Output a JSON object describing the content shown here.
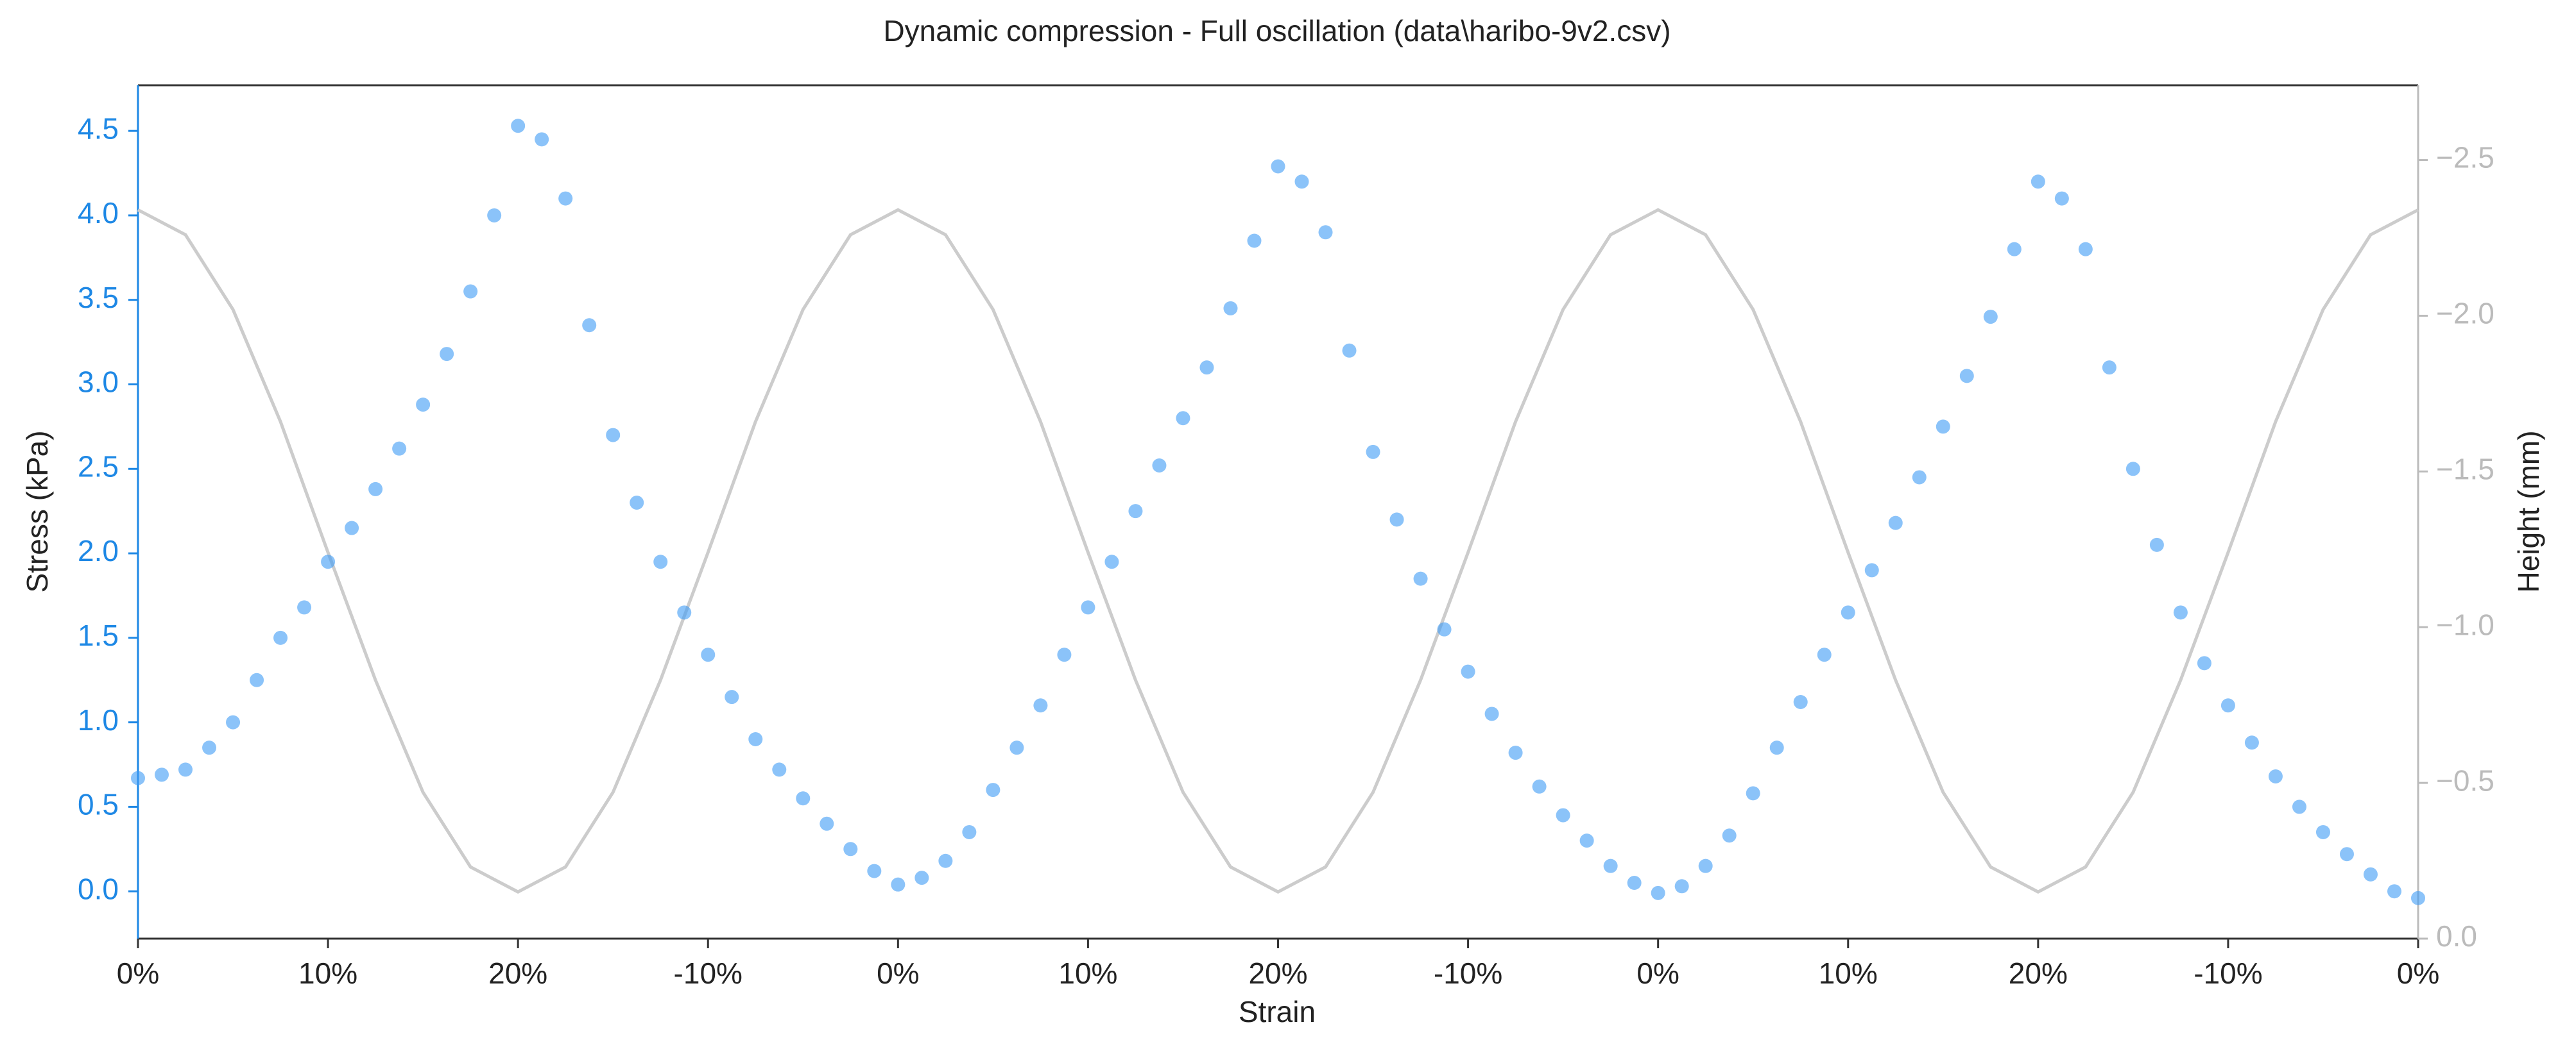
{
  "chart_data": {
    "type": "scatter",
    "title": "Dynamic compression - Full oscillation (data\\haribo-9v2.csv)",
    "xlabel": "Strain",
    "ylabel": "Stress (kPa)",
    "y2label": "Height (mm)",
    "xlim": [
      0,
      12
    ],
    "xticks": [
      {
        "value": 0,
        "label": "0%"
      },
      {
        "value": 1,
        "label": "10%"
      },
      {
        "value": 2,
        "label": "20%"
      },
      {
        "value": 3,
        "label": "-10%"
      },
      {
        "value": 4,
        "label": "0%"
      },
      {
        "value": 5,
        "label": "10%"
      },
      {
        "value": 6,
        "label": "20%"
      },
      {
        "value": 7,
        "label": "-10%"
      },
      {
        "value": 8,
        "label": "0%"
      },
      {
        "value": 9,
        "label": "10%"
      },
      {
        "value": 10,
        "label": "20%"
      },
      {
        "value": 11,
        "label": "-10%"
      },
      {
        "value": 12,
        "label": "0%"
      }
    ],
    "ylim": [
      -0.28,
      4.77
    ],
    "yticks": [
      {
        "value": 0,
        "label": "0.0"
      },
      0.5,
      {
        "value": 1,
        "label": "1.0"
      },
      1.5,
      {
        "value": 2,
        "label": "2.0"
      },
      2.5,
      {
        "value": 3,
        "label": "3.0"
      },
      3.5,
      {
        "value": 4,
        "label": "4.0"
      },
      4.5
    ],
    "y2lim": [
      0,
      -2.74
    ],
    "y2ticks": [
      {
        "value": 0,
        "label": "0.0"
      },
      {
        "value": -0.5,
        "label": "−0.5"
      },
      {
        "value": -1,
        "label": "−1.0"
      },
      {
        "value": -1.5,
        "label": "−1.5"
      },
      {
        "value": -2,
        "label": "−2.0"
      },
      {
        "value": -2.5,
        "label": "−2.5"
      }
    ],
    "y_color": "#1e88e5",
    "y2_color": "#bbbbbb",
    "series": [
      {
        "type": "scatter",
        "color": "#3d9bf5",
        "x": [
          0,
          0.125,
          0.25,
          0.375,
          0.5,
          0.625,
          0.75,
          0.875,
          1,
          1.125,
          1.25,
          1.375,
          1.5,
          1.625,
          1.75,
          1.875,
          2,
          2.125,
          2.25,
          2.375,
          2.5,
          2.625,
          2.75,
          2.875,
          3,
          3.125,
          3.25,
          3.375,
          3.5,
          3.625,
          3.75,
          3.875,
          4,
          4.125,
          4.25,
          4.375,
          4.5,
          4.625,
          4.75,
          4.875,
          5,
          5.125,
          5.25,
          5.375,
          5.5,
          5.625,
          5.75,
          5.875,
          6,
          6.125,
          6.25,
          6.375,
          6.5,
          6.625,
          6.75,
          6.875,
          7,
          7.125,
          7.25,
          7.375,
          7.5,
          7.625,
          7.75,
          7.875,
          8,
          8.125,
          8.25,
          8.375,
          8.5,
          8.625,
          8.75,
          8.875,
          9,
          9.125,
          9.25,
          9.375,
          9.5,
          9.625,
          9.75,
          9.875,
          10,
          10.125,
          10.25,
          10.375,
          10.5,
          10.625,
          10.75,
          10.875,
          11,
          11.125,
          11.25,
          11.375,
          11.5,
          11.625,
          11.75,
          11.875,
          12
        ],
        "values": [
          0.67,
          0.69,
          0.72,
          0.85,
          1.0,
          1.25,
          1.5,
          1.68,
          1.95,
          2.15,
          2.38,
          2.62,
          2.88,
          3.18,
          3.55,
          4.0,
          4.53,
          4.45,
          4.1,
          3.35,
          2.7,
          2.3,
          1.95,
          1.65,
          1.4,
          1.15,
          0.9,
          0.72,
          0.55,
          0.4,
          0.25,
          0.12,
          0.04,
          0.08,
          0.18,
          0.35,
          0.6,
          0.85,
          1.1,
          1.4,
          1.68,
          1.95,
          2.25,
          2.52,
          2.8,
          3.1,
          3.45,
          3.85,
          4.29,
          4.2,
          3.9,
          3.2,
          2.6,
          2.2,
          1.85,
          1.55,
          1.3,
          1.05,
          0.82,
          0.62,
          0.45,
          0.3,
          0.15,
          0.05,
          -0.01,
          0.03,
          0.15,
          0.33,
          0.58,
          0.85,
          1.12,
          1.4,
          1.65,
          1.9,
          2.18,
          2.45,
          2.75,
          3.05,
          3.4,
          3.8,
          4.2,
          4.1,
          3.8,
          3.1,
          2.5,
          2.05,
          1.65,
          1.35,
          1.1,
          0.88,
          0.68,
          0.5,
          0.35,
          0.22,
          0.1,
          0.0,
          -0.04
        ]
      },
      {
        "type": "line",
        "axis": "y2",
        "color": "#cccccc",
        "x": [
          0,
          0.25,
          0.5,
          0.75,
          1,
          1.25,
          1.5,
          1.75,
          2,
          2.25,
          2.5,
          2.75,
          3,
          3.25,
          3.5,
          3.75,
          4,
          4.25,
          4.5,
          4.75,
          5,
          5.25,
          5.5,
          5.75,
          6,
          6.25,
          6.5,
          6.75,
          7,
          7.25,
          7.5,
          7.75,
          8,
          8.25,
          8.5,
          8.75,
          9,
          9.25,
          9.5,
          9.75,
          10,
          10.25,
          10.5,
          10.75,
          11,
          11.25,
          11.5,
          11.75,
          12
        ],
        "values": [
          -2.34,
          -2.26,
          -2.02,
          -1.66,
          -1.24,
          -0.83,
          -0.47,
          -0.23,
          -0.15,
          -0.23,
          -0.47,
          -0.83,
          -1.24,
          -1.66,
          -2.02,
          -2.26,
          -2.34,
          -2.26,
          -2.02,
          -1.66,
          -1.24,
          -0.83,
          -0.47,
          -0.23,
          -0.15,
          -0.23,
          -0.47,
          -0.83,
          -1.24,
          -1.66,
          -2.02,
          -2.26,
          -2.34,
          -2.26,
          -2.02,
          -1.66,
          -1.24,
          -0.83,
          -0.47,
          -0.23,
          -0.15,
          -0.23,
          -0.47,
          -0.83,
          -1.24,
          -1.66,
          -2.02,
          -2.26,
          -2.34
        ]
      }
    ]
  }
}
